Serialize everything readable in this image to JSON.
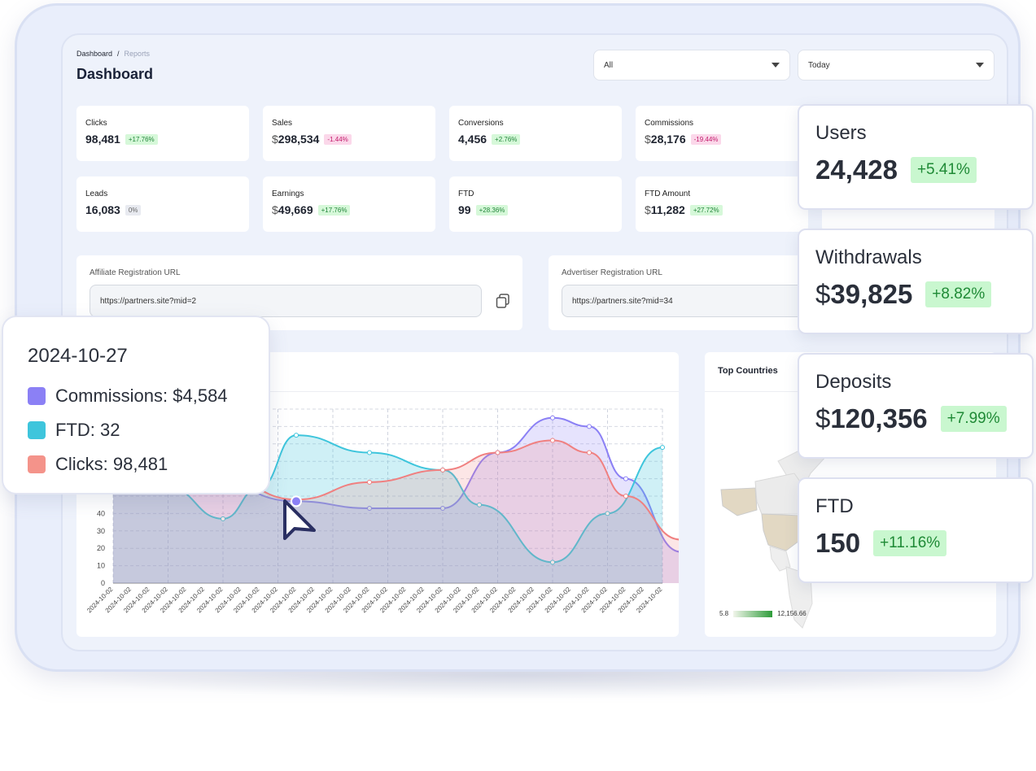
{
  "breadcrumb": {
    "root": "Dashboard",
    "current": "Reports"
  },
  "page_title": "Dashboard",
  "filters": {
    "type_select": "All",
    "range_select": "Today"
  },
  "stats": [
    {
      "label": "Clicks",
      "currency": "",
      "value": "98,481",
      "change": "+17.76%",
      "trend": "up"
    },
    {
      "label": "Sales",
      "currency": "$",
      "value": "298,534",
      "change": "-1.44%",
      "trend": "down"
    },
    {
      "label": "Conversions",
      "currency": "",
      "value": "4,456",
      "change": "+2.76%",
      "trend": "up"
    },
    {
      "label": "Commissions",
      "currency": "$",
      "value": "28,176",
      "change": "-19.44%",
      "trend": "down"
    },
    {
      "label": "Leads",
      "currency": "",
      "value": "16,083",
      "change": "0%",
      "trend": "zero"
    },
    {
      "label": "Earnings",
      "currency": "$",
      "value": "49,669",
      "change": "+17.76%",
      "trend": "up"
    },
    {
      "label": "FTD",
      "currency": "",
      "value": "99",
      "change": "+28.36%",
      "trend": "up"
    },
    {
      "label": "FTD Amount",
      "currency": "$",
      "value": "11,282",
      "change": "+27.72%",
      "trend": "up"
    }
  ],
  "affiliate_url": {
    "label": "Affiliate Registration URL",
    "value": "https://partners.site?mid=2"
  },
  "advertiser_url": {
    "label": "Advertiser Registration URL",
    "value": "https://partners.site?mid=34"
  },
  "countries": {
    "title": "Top Countries",
    "scale_min": "5.8",
    "scale_max": "12,156.66"
  },
  "overlay_cards": [
    {
      "title": "Users",
      "currency": "",
      "value": "24,428",
      "change": "+5.41%"
    },
    {
      "title": "Withdrawals",
      "currency": "$",
      "value": "39,825",
      "change": "+8.82%"
    },
    {
      "title": "Deposits",
      "currency": "$",
      "value": "120,356",
      "change": "+7.99%"
    },
    {
      "title": "FTD",
      "currency": "",
      "value": "150",
      "change": "+11.16%"
    }
  ],
  "tooltip": {
    "date": "2024-10-27",
    "items": [
      {
        "label": "Commissions: $4,584",
        "color": "#8b80f5"
      },
      {
        "label": "FTD: 32",
        "color": "#3ec5dc"
      },
      {
        "label": "Clicks: 98,481",
        "color": "#f4938a"
      }
    ]
  },
  "colors": {
    "commissions": "#8b80f5",
    "ftd": "#3ec5dc",
    "clicks": "#f08080",
    "accent_up": "#22863a",
    "accent_down": "#c21a6b"
  },
  "chart_data": {
    "type": "area",
    "x": [
      "2024-10-02",
      "2024-10-02",
      "2024-10-02",
      "2024-10-02",
      "2024-10-02",
      "2024-10-02",
      "2024-10-02",
      "2024-10-02",
      "2024-10-02",
      "2024-10-02",
      "2024-10-02",
      "2024-10-02",
      "2024-10-02",
      "2024-10-02",
      "2024-10-02",
      "2024-10-02",
      "2024-10-02",
      "2024-10-02",
      "2024-10-02",
      "2024-10-02",
      "2024-10-02",
      "2024-10-02",
      "2024-10-02",
      "2024-10-02",
      "2024-10-02",
      "2024-10-02",
      "2024-10-02",
      "2024-10-02",
      "2024-10-02",
      "2024-10-02",
      "2024-10-02"
    ],
    "y_ticks": [
      "0",
      "10",
      "20",
      "30",
      "40"
    ],
    "ylim": [
      0,
      100
    ],
    "grid": true,
    "series": [
      {
        "name": "Commissions",
        "points": [
          [
            0,
            85
          ],
          [
            5,
            60
          ],
          [
            10,
            47
          ],
          [
            14,
            43
          ],
          [
            18,
            43
          ],
          [
            21,
            75
          ],
          [
            24,
            95
          ],
          [
            26,
            90
          ],
          [
            28,
            60
          ],
          [
            31,
            18
          ]
        ]
      },
      {
        "name": "FTD",
        "points": [
          [
            0,
            70
          ],
          [
            3,
            55
          ],
          [
            6,
            37
          ],
          [
            8,
            55
          ],
          [
            10,
            85
          ],
          [
            14,
            75
          ],
          [
            18,
            65
          ],
          [
            20,
            45
          ],
          [
            24,
            12
          ],
          [
            27,
            40
          ],
          [
            30,
            78
          ]
        ]
      },
      {
        "name": "Clicks",
        "points": [
          [
            0,
            75
          ],
          [
            5,
            68
          ],
          [
            10,
            48
          ],
          [
            14,
            58
          ],
          [
            18,
            65
          ],
          [
            21,
            75
          ],
          [
            24,
            82
          ],
          [
            26,
            75
          ],
          [
            28,
            50
          ],
          [
            31,
            25
          ]
        ]
      }
    ]
  }
}
